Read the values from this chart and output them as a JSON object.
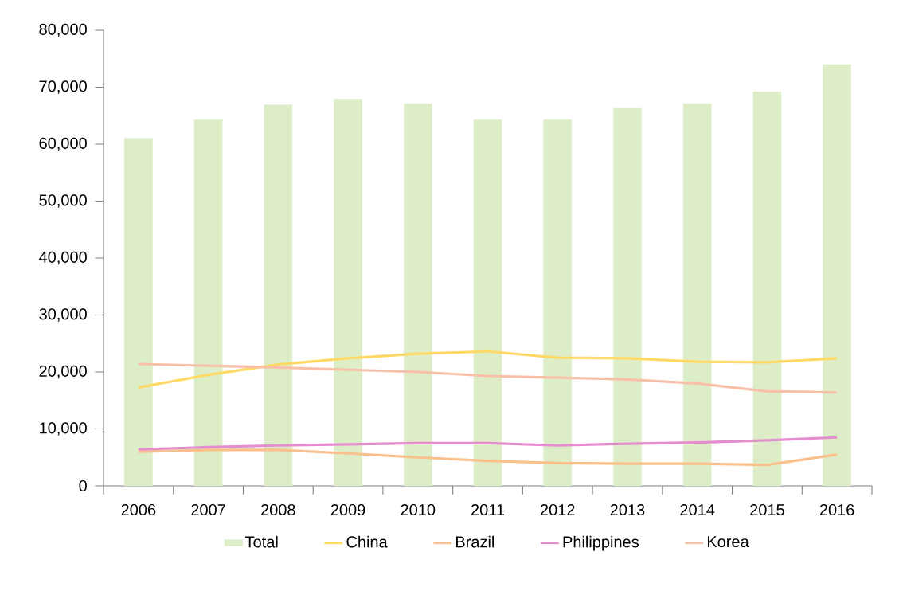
{
  "chart_data": {
    "type": "bar",
    "categories": [
      "2006",
      "2007",
      "2008",
      "2009",
      "2010",
      "2011",
      "2012",
      "2013",
      "2014",
      "2015",
      "2016"
    ],
    "series": [
      {
        "name": "Total",
        "color": "#dcedc8",
        "values": [
          61000,
          64300,
          66900,
          67900,
          67100,
          64300,
          64300,
          66300,
          67100,
          69200,
          74000
        ]
      },
      {
        "name": "China",
        "type": "line",
        "color": "#ffd966",
        "values": [
          17300,
          19500,
          21300,
          22400,
          23200,
          23600,
          22500,
          22400,
          21800,
          21700,
          22400
        ]
      },
      {
        "name": "Brazil",
        "type": "line",
        "color": "#f9c08b",
        "values": [
          6000,
          6300,
          6300,
          5700,
          5000,
          4400,
          4000,
          3900,
          3900,
          3700,
          5500
        ]
      },
      {
        "name": "Philippines",
        "type": "line",
        "color": "#e48ed0",
        "values": [
          6400,
          6800,
          7100,
          7300,
          7500,
          7500,
          7100,
          7400,
          7600,
          8000,
          8500
        ]
      },
      {
        "name": "Korea",
        "type": "line",
        "color": "#f8c0a8",
        "values": [
          21400,
          21100,
          20800,
          20400,
          20000,
          19300,
          19000,
          18700,
          18000,
          16600,
          16400
        ]
      }
    ],
    "ylim": [
      0,
      80000
    ],
    "yticks": [
      {
        "value": 0,
        "label": "0"
      },
      {
        "value": 10000,
        "label": "10,000"
      },
      {
        "value": 20000,
        "label": "20,000"
      },
      {
        "value": 30000,
        "label": "30,000"
      },
      {
        "value": 40000,
        "label": "40,000"
      },
      {
        "value": 50000,
        "label": "50,000"
      },
      {
        "value": 60000,
        "label": "60,000"
      },
      {
        "value": 70000,
        "label": "70,000"
      },
      {
        "value": 80000,
        "label": "80,000"
      }
    ],
    "legend": "bottom"
  }
}
